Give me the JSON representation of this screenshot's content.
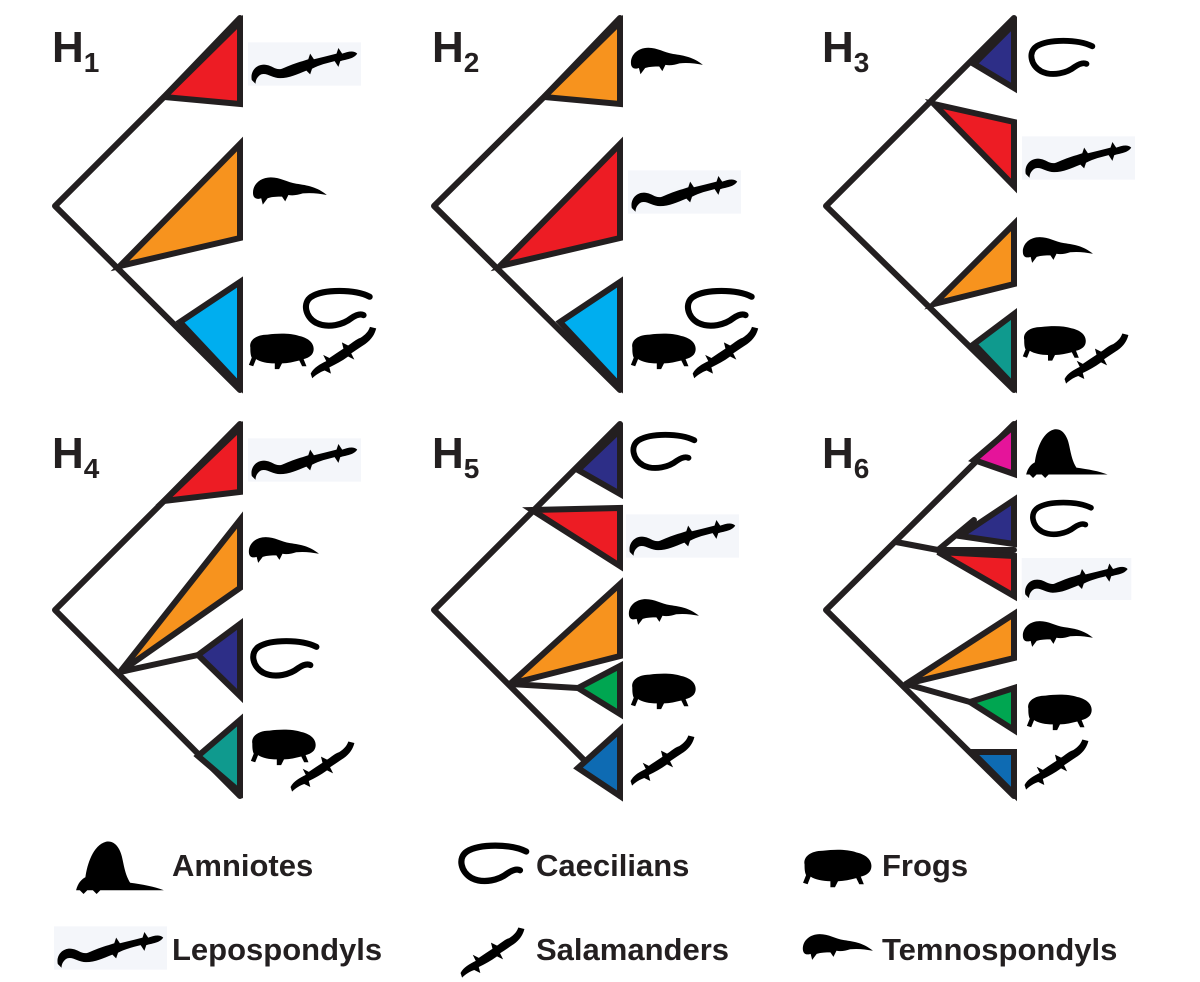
{
  "colors": {
    "Amniotes": "#e5149a",
    "Caecilians": "#2d2e87",
    "Lepospondyls": "#ed1c24",
    "Temnospondyls": "#f7931e",
    "Frogs": "#00a651",
    "Salamanders": "#0e6bb3",
    "Lissamphibia": "#00aeef",
    "Batrachia": "#0f9a8e"
  },
  "hypotheses": [
    {
      "id": "H",
      "sub": "1",
      "tips": [
        "Lepospondyls",
        "Temnospondyls",
        "Lissamphibia"
      ]
    },
    {
      "id": "H",
      "sub": "2",
      "tips": [
        "Temnospondyls",
        "Lepospondyls",
        "Lissamphibia"
      ]
    },
    {
      "id": "H",
      "sub": "3",
      "tips": [
        "Caecilians",
        "Lepospondyls",
        "Temnospondyls",
        "Batrachia"
      ]
    },
    {
      "id": "H",
      "sub": "4",
      "tips": [
        "Lepospondyls",
        "Temnospondyls",
        "Caecilians",
        "Batrachia"
      ]
    },
    {
      "id": "H",
      "sub": "5",
      "tips": [
        "Caecilians",
        "Lepospondyls",
        "Temnospondyls",
        "Frogs",
        "Salamanders"
      ]
    },
    {
      "id": "H",
      "sub": "6",
      "tips": [
        "Amniotes",
        "Caecilians",
        "Lepospondyls",
        "Temnospondyls",
        "Frogs",
        "Salamanders"
      ]
    }
  ],
  "legend": [
    {
      "label": "Amniotes",
      "icon": "amniote-icon"
    },
    {
      "label": "Caecilians",
      "icon": "caecilian-icon"
    },
    {
      "label": "Frogs",
      "icon": "frog-icon"
    },
    {
      "label": "Lepospondyls",
      "icon": "lepospondyl-icon"
    },
    {
      "label": "Salamanders",
      "icon": "salamander-icon"
    },
    {
      "label": "Temnospondyls",
      "icon": "temnospondyl-icon"
    }
  ]
}
